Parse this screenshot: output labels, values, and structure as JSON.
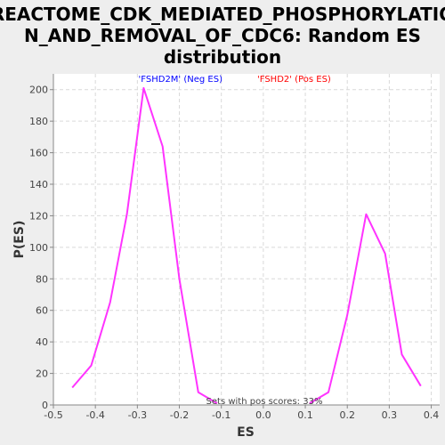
{
  "chart_data": {
    "type": "line",
    "title_lines": [
      "REACTOME_CDK_MEDIATED_PHOSPHORYLATIO",
      "N_AND_REMOVAL_OF_CDC6: Random ES",
      "distribution"
    ],
    "xlabel": "ES",
    "ylabel": "P(ES)",
    "xlim": [
      -0.5,
      0.42
    ],
    "ylim": [
      0,
      210
    ],
    "x_ticks": [
      -0.5,
      -0.4,
      -0.3,
      -0.2,
      -0.1,
      0.0,
      0.1,
      0.2,
      0.3,
      0.4
    ],
    "x_tick_labels": [
      "-0.5",
      "-0.4",
      "-0.3",
      "-0.2",
      "-0.1",
      "0.0",
      "0.1",
      "0.2",
      "0.3",
      "0.4"
    ],
    "y_ticks": [
      0,
      20,
      40,
      60,
      80,
      100,
      120,
      140,
      160,
      180,
      200
    ],
    "y_tick_labels": [
      "0",
      "20",
      "40",
      "60",
      "80",
      "100",
      "120",
      "140",
      "160",
      "180",
      "200"
    ],
    "grid": true,
    "legend": [
      {
        "label": "'FSHD2M' (Neg ES)",
        "color": "#0000ff"
      },
      {
        "label": "'FSHD2' (Pos ES)",
        "color": "#ff0000"
      }
    ],
    "annotation": "Sets with pos scores: 33%",
    "series": [
      {
        "color": "#ff33ff",
        "x": [
          -0.455,
          -0.41,
          -0.365,
          -0.325,
          -0.285,
          -0.24,
          -0.2,
          -0.155,
          -0.11
        ],
        "y": [
          11,
          25,
          65,
          121,
          201,
          164,
          80,
          8,
          1
        ]
      },
      {
        "color": "#ff33ff",
        "x": [
          0.11,
          0.155,
          0.2,
          0.245,
          0.29,
          0.33,
          0.375
        ],
        "y": [
          1,
          8,
          57,
          121,
          96,
          32,
          12
        ]
      }
    ]
  }
}
